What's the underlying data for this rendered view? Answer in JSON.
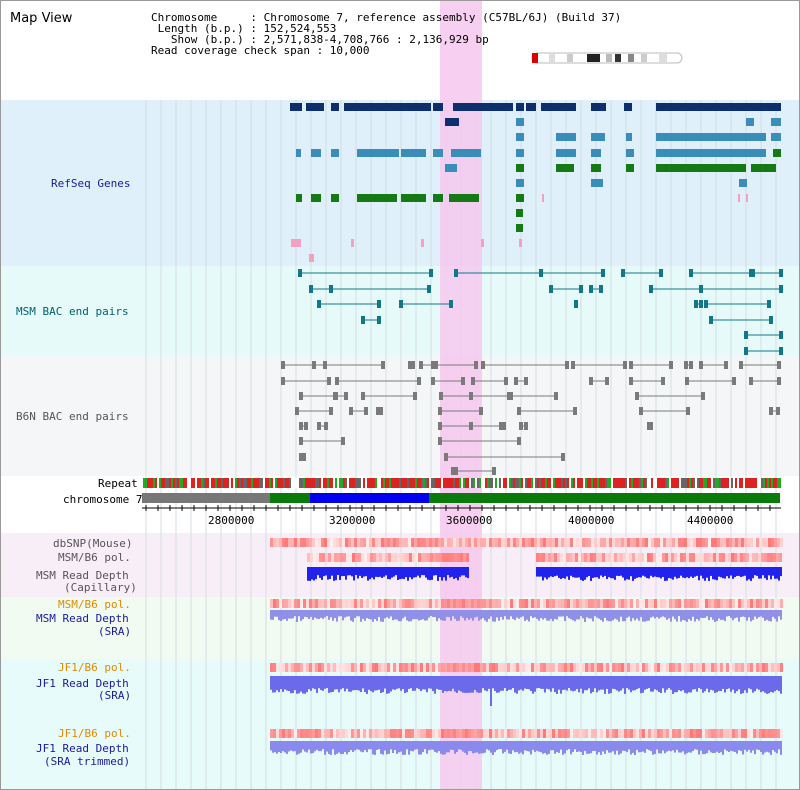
{
  "app_title": "Map View",
  "info_lines": [
    "Chromosome     : Chromosome 7, reference assembly (C57BL/6J) (Build 37)",
    " Length (b.p.) : 152,524,553",
    "   Show (b.p.) : 2,571,838-4,708,766 : 2,136,929 bp",
    "Read coverage check span : 10,000"
  ],
  "tracks": {
    "refseq": "RefSeq Genes",
    "msm_bac": "MSM BAC end pairs",
    "b6n_bac": "B6N BAC end pairs",
    "repeat": "Repeat",
    "chromosome": "chromosome 7",
    "dbsnp": "dbSNP(Mouse)",
    "msm_b6_pol_1": "MSM/B6 pol.",
    "msm_depth_cap_1": "MSM Read Depth",
    "msm_depth_cap_2": "(Capillary)",
    "msm_b6_pol_2": "MSM/B6 pol.",
    "msm_depth_sra_1": "MSM Read Depth",
    "msm_depth_sra_2": "(SRA)",
    "jf1_b6_pol_1": "JF1/B6 pol.",
    "jf1_depth_sra_1": "JF1 Read Depth",
    "jf1_depth_sra_2": "(SRA)",
    "jf1_b6_pol_2": "JF1/B6 pol.",
    "jf1_depth_trim_1": "JF1 Read Depth",
    "jf1_depth_trim_2": "(SRA trimmed)"
  },
  "ruler_ticks": [
    "2800000",
    "3200000",
    "3600000",
    "4000000",
    "4400000"
  ],
  "colors": {
    "label_blue": "#1a1a9a",
    "label_teal": "#006070",
    "label_gray": "#555555",
    "label_orange": "#e08a00",
    "gene_navy": "#0d2f6e",
    "gene_steel": "#3a8db8",
    "gene_green": "#157a15",
    "bac_teal": "#11778a",
    "highlight_pink": "#f6c8ee"
  }
}
